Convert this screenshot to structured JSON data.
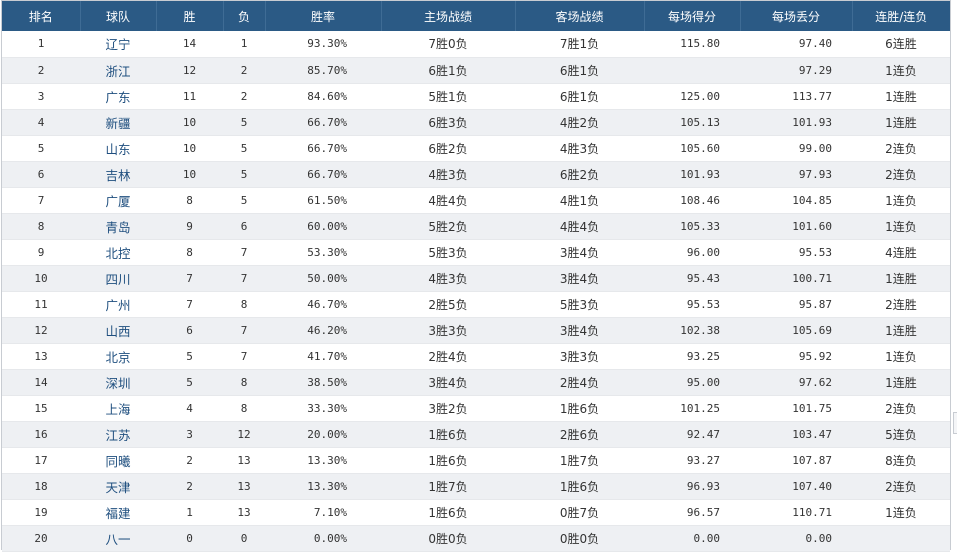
{
  "table": {
    "headers": {
      "rank": "排名",
      "team": "球队",
      "wins": "胜",
      "losses": "负",
      "win_pct": "胜率",
      "home_record": "主场战绩",
      "away_record": "客场战绩",
      "points_for": "每场得分",
      "points_against": "每场丢分",
      "streak": "连胜/连负"
    },
    "rows": [
      {
        "rank": "1",
        "team": "辽宁",
        "wins": "14",
        "losses": "1",
        "win_pct": "93.30%",
        "home": "7胜0负",
        "away": "7胜1负",
        "pf": "115.80",
        "pa": "97.40",
        "streak": "6连胜"
      },
      {
        "rank": "2",
        "team": "浙江",
        "wins": "12",
        "losses": "2",
        "win_pct": "85.70%",
        "home": "6胜1负",
        "away": "6胜1负",
        "pf": "",
        "pa": "97.29",
        "streak": "1连负"
      },
      {
        "rank": "3",
        "team": "广东",
        "wins": "11",
        "losses": "2",
        "win_pct": "84.60%",
        "home": "5胜1负",
        "away": "6胜1负",
        "pf": "125.00",
        "pa": "113.77",
        "streak": "1连胜"
      },
      {
        "rank": "4",
        "team": "新疆",
        "wins": "10",
        "losses": "5",
        "win_pct": "66.70%",
        "home": "6胜3负",
        "away": "4胜2负",
        "pf": "105.13",
        "pa": "101.93",
        "streak": "1连胜"
      },
      {
        "rank": "5",
        "team": "山东",
        "wins": "10",
        "losses": "5",
        "win_pct": "66.70%",
        "home": "6胜2负",
        "away": "4胜3负",
        "pf": "105.60",
        "pa": "99.00",
        "streak": "2连负"
      },
      {
        "rank": "6",
        "team": "吉林",
        "wins": "10",
        "losses": "5",
        "win_pct": "66.70%",
        "home": "4胜3负",
        "away": "6胜2负",
        "pf": "101.93",
        "pa": "97.93",
        "streak": "2连负"
      },
      {
        "rank": "7",
        "team": "广厦",
        "wins": "8",
        "losses": "5",
        "win_pct": "61.50%",
        "home": "4胜4负",
        "away": "4胜1负",
        "pf": "108.46",
        "pa": "104.85",
        "streak": "1连负"
      },
      {
        "rank": "8",
        "team": "青岛",
        "wins": "9",
        "losses": "6",
        "win_pct": "60.00%",
        "home": "5胜2负",
        "away": "4胜4负",
        "pf": "105.33",
        "pa": "101.60",
        "streak": "1连负"
      },
      {
        "rank": "9",
        "team": "北控",
        "wins": "8",
        "losses": "7",
        "win_pct": "53.30%",
        "home": "5胜3负",
        "away": "3胜4负",
        "pf": "96.00",
        "pa": "95.53",
        "streak": "4连胜"
      },
      {
        "rank": "10",
        "team": "四川",
        "wins": "7",
        "losses": "7",
        "win_pct": "50.00%",
        "home": "4胜3负",
        "away": "3胜4负",
        "pf": "95.43",
        "pa": "100.71",
        "streak": "1连胜"
      },
      {
        "rank": "11",
        "team": "广州",
        "wins": "7",
        "losses": "8",
        "win_pct": "46.70%",
        "home": "2胜5负",
        "away": "5胜3负",
        "pf": "95.53",
        "pa": "95.87",
        "streak": "2连胜"
      },
      {
        "rank": "12",
        "team": "山西",
        "wins": "6",
        "losses": "7",
        "win_pct": "46.20%",
        "home": "3胜3负",
        "away": "3胜4负",
        "pf": "102.38",
        "pa": "105.69",
        "streak": "1连胜"
      },
      {
        "rank": "13",
        "team": "北京",
        "wins": "5",
        "losses": "7",
        "win_pct": "41.70%",
        "home": "2胜4负",
        "away": "3胜3负",
        "pf": "93.25",
        "pa": "95.92",
        "streak": "1连负"
      },
      {
        "rank": "14",
        "team": "深圳",
        "wins": "5",
        "losses": "8",
        "win_pct": "38.50%",
        "home": "3胜4负",
        "away": "2胜4负",
        "pf": "95.00",
        "pa": "97.62",
        "streak": "1连胜"
      },
      {
        "rank": "15",
        "team": "上海",
        "wins": "4",
        "losses": "8",
        "win_pct": "33.30%",
        "home": "3胜2负",
        "away": "1胜6负",
        "pf": "101.25",
        "pa": "101.75",
        "streak": "2连负"
      },
      {
        "rank": "16",
        "team": "江苏",
        "wins": "3",
        "losses": "12",
        "win_pct": "20.00%",
        "home": "1胜6负",
        "away": "2胜6负",
        "pf": "92.47",
        "pa": "103.47",
        "streak": "5连负"
      },
      {
        "rank": "17",
        "team": "同曦",
        "wins": "2",
        "losses": "13",
        "win_pct": "13.30%",
        "home": "1胜6负",
        "away": "1胜7负",
        "pf": "93.27",
        "pa": "107.87",
        "streak": "8连负"
      },
      {
        "rank": "18",
        "team": "天津",
        "wins": "2",
        "losses": "13",
        "win_pct": "13.30%",
        "home": "1胜7负",
        "away": "1胜6负",
        "pf": "96.93",
        "pa": "107.40",
        "streak": "2连负"
      },
      {
        "rank": "19",
        "team": "福建",
        "wins": "1",
        "losses": "13",
        "win_pct": "7.10%",
        "home": "1胜6负",
        "away": "0胜7负",
        "pf": "96.57",
        "pa": "110.71",
        "streak": "1连负"
      },
      {
        "rank": "20",
        "team": "八一",
        "wins": "0",
        "losses": "0",
        "win_pct": "0.00%",
        "home": "0胜0负",
        "away": "0胜0负",
        "pf": "0.00",
        "pa": "0.00",
        "streak": ""
      }
    ]
  },
  "colors": {
    "header_bg": "#2b5a85",
    "header_text": "#ffffff",
    "row_alt_bg": "#eef0f3",
    "team_link": "#1f4f7f"
  }
}
